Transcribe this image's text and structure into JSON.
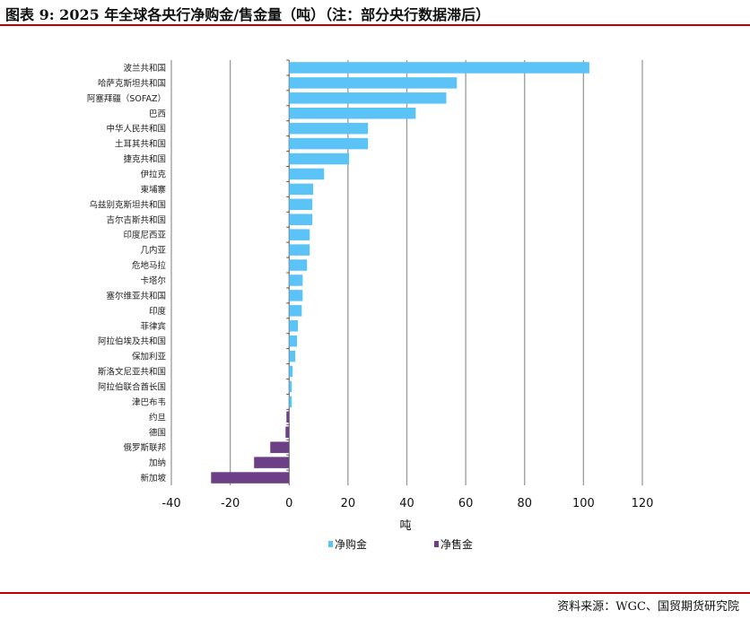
{
  "title": "图表 9: 2025 年全球各央行净购金/售金量（吨）（注：部分央行数据滞后）",
  "source": "资料来源：WGC、国贸期货研究院",
  "chart_data": {
    "type": "bar",
    "orientation": "horizontal",
    "xlabel": "吨",
    "xlim": [
      -40,
      120
    ],
    "xticks": [
      -40,
      -20,
      0,
      20,
      40,
      60,
      80,
      100,
      120
    ],
    "grid": true,
    "legend_position": "bottom",
    "colors": {
      "净购金": "#5CC3F7",
      "净售金": "#6C3F87"
    },
    "categories": [
      "波兰共和国",
      "哈萨克斯坦共和国",
      "阿塞拜疆（SOFAZ）",
      "巴西",
      "中华人民共和国",
      "土耳其共和国",
      "捷克共和国",
      "伊拉克",
      "柬埔寨",
      "乌兹别克斯坦共和国",
      "吉尔吉斯共和国",
      "印度尼西亚",
      "几内亚",
      "危地马拉",
      "卡塔尔",
      "塞尔维亚共和国",
      "印度",
      "菲律宾",
      "阿拉伯埃及共和国",
      "保加利亚",
      "斯洛文尼亚共和国",
      "阿拉伯联合酋长国",
      "津巴布韦",
      "约旦",
      "德国",
      "俄罗斯联邦",
      "加纳",
      "新加坡"
    ],
    "values": [
      102,
      57,
      53.4,
      43,
      26.8,
      26.8,
      20.4,
      11.9,
      8.2,
      7.9,
      7.9,
      7,
      7,
      6.1,
      4.6,
      4.6,
      4.3,
      3,
      2.7,
      2.1,
      1.2,
      0.9,
      0.9,
      -0.9,
      -1.2,
      -6.4,
      -11.9,
      -26.5
    ],
    "series": [
      {
        "name": "净购金"
      },
      {
        "name": "净售金"
      }
    ]
  }
}
